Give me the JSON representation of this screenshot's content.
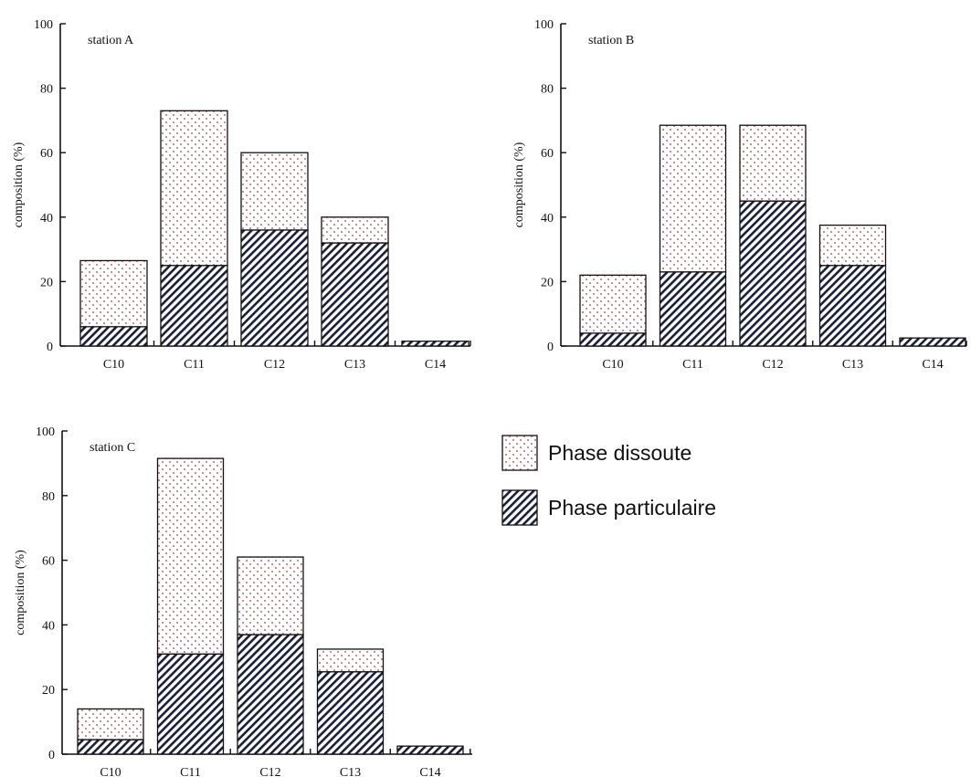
{
  "colors": {
    "dissolved_dot": "#c25a5a",
    "particulate_hatch": "#1a1f3a",
    "axis": "#111111"
  },
  "legend": {
    "items": [
      {
        "label": "Phase dissoute",
        "pattern": "dots"
      },
      {
        "label": "Phase particulaire",
        "pattern": "hatch"
      }
    ]
  },
  "chart_data": [
    {
      "type": "bar",
      "stacked": true,
      "station_label": "station A",
      "categories": [
        "C10",
        "C11",
        "C12",
        "C13",
        "C14"
      ],
      "ylabel": "composition (%)",
      "ylim": [
        0,
        100
      ],
      "yticks": [
        0,
        20,
        40,
        60,
        80,
        100
      ],
      "series": [
        {
          "name": "Phase particulaire",
          "values": [
            6,
            25,
            36,
            32,
            1.5
          ]
        },
        {
          "name": "Phase dissoute",
          "values": [
            20.5,
            48,
            24,
            8,
            0
          ]
        }
      ]
    },
    {
      "type": "bar",
      "stacked": true,
      "station_label": "station B",
      "categories": [
        "C10",
        "C11",
        "C12",
        "C13",
        "C14"
      ],
      "ylabel": "composition (%)",
      "ylim": [
        0,
        100
      ],
      "yticks": [
        0,
        20,
        40,
        60,
        80,
        100
      ],
      "series": [
        {
          "name": "Phase particulaire",
          "values": [
            4,
            23,
            45,
            25,
            2.5
          ]
        },
        {
          "name": "Phase dissoute",
          "values": [
            18,
            45.5,
            23.5,
            12.5,
            0
          ]
        }
      ]
    },
    {
      "type": "bar",
      "stacked": true,
      "station_label": "station C",
      "categories": [
        "C10",
        "C11",
        "C12",
        "C13",
        "C14"
      ],
      "ylabel": "composition (%)",
      "ylim": [
        0,
        100
      ],
      "yticks": [
        0,
        20,
        40,
        60,
        80,
        100
      ],
      "series": [
        {
          "name": "Phase particulaire",
          "values": [
            4.5,
            31,
            37,
            25.5,
            2.5
          ]
        },
        {
          "name": "Phase dissoute",
          "values": [
            9.5,
            60.5,
            24,
            7,
            0
          ]
        }
      ]
    }
  ]
}
